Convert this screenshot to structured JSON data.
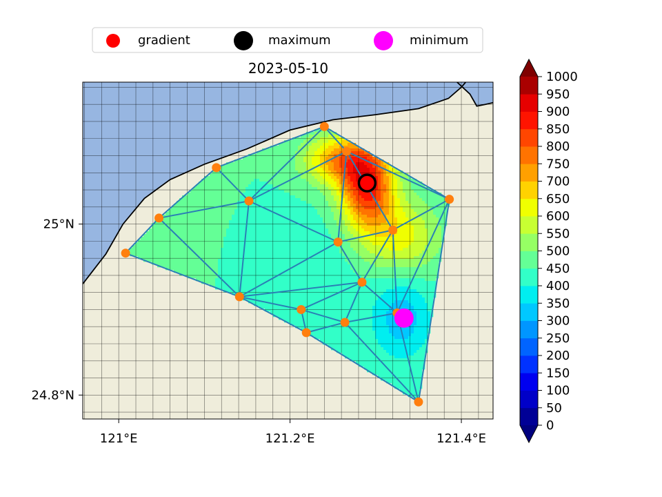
{
  "chart_data": {
    "type": "contour-map",
    "title": "2023-05-10",
    "legend": {
      "placement": "top",
      "entries": [
        {
          "label": "gradient",
          "color": "#ff0000",
          "marker": "circle"
        },
        {
          "label": "maximum",
          "color": "#000000",
          "marker": "circle"
        },
        {
          "label": "minimum",
          "color": "#ff00ff",
          "marker": "circle"
        }
      ]
    },
    "xlim": [
      120.958,
      121.437
    ],
    "ylim": [
      24.772,
      25.166
    ],
    "xticks": [
      {
        "value": 121.0,
        "label": "121°E"
      },
      {
        "value": 121.2,
        "label": "121.2°E"
      },
      {
        "value": 121.4,
        "label": "121.4°E"
      }
    ],
    "yticks": [
      {
        "value": 25.0,
        "label": "25°N"
      },
      {
        "value": 24.8,
        "label": "24.8°N"
      }
    ],
    "grid": true,
    "grid_spacing_deg": 0.02,
    "colors": {
      "sea": "#97b6e1",
      "land": "#efeddb",
      "mesh": "#2a7fb5",
      "station": "#ff7f0e"
    },
    "coastline": [
      [
        120.958,
        24.93
      ],
      [
        120.985,
        24.965
      ],
      [
        121.005,
        25.0
      ],
      [
        121.03,
        25.03
      ],
      [
        121.06,
        25.052
      ],
      [
        121.1,
        25.07
      ],
      [
        121.15,
        25.088
      ],
      [
        121.2,
        25.11
      ],
      [
        121.25,
        25.122
      ],
      [
        121.3,
        25.128
      ],
      [
        121.35,
        25.135
      ],
      [
        121.385,
        25.147
      ],
      [
        121.4,
        25.16
      ],
      [
        121.405,
        25.166
      ]
    ],
    "coastline2": [
      [
        121.395,
        25.166
      ],
      [
        121.41,
        25.152
      ],
      [
        121.418,
        25.138
      ],
      [
        121.428,
        25.14
      ],
      [
        121.437,
        25.142
      ]
    ],
    "stations": [
      {
        "lon": 121.24,
        "lat": 25.114
      },
      {
        "lon": 121.266,
        "lat": 25.085
      },
      {
        "lon": 121.114,
        "lat": 25.066
      },
      {
        "lon": 121.152,
        "lat": 25.027
      },
      {
        "lon": 121.047,
        "lat": 25.007
      },
      {
        "lon": 121.008,
        "lat": 24.966
      },
      {
        "lon": 121.386,
        "lat": 25.029
      },
      {
        "lon": 121.32,
        "lat": 24.993
      },
      {
        "lon": 121.256,
        "lat": 24.979
      },
      {
        "lon": 121.284,
        "lat": 24.932
      },
      {
        "lon": 121.141,
        "lat": 24.915
      },
      {
        "lon": 121.213,
        "lat": 24.9
      },
      {
        "lon": 121.264,
        "lat": 24.885
      },
      {
        "lon": 121.219,
        "lat": 24.873
      },
      {
        "lon": 121.325,
        "lat": 24.896
      },
      {
        "lon": 121.35,
        "lat": 24.792
      }
    ],
    "triangles": [
      [
        0,
        1,
        3
      ],
      [
        0,
        2,
        3
      ],
      [
        0,
        1,
        6
      ],
      [
        2,
        3,
        4
      ],
      [
        3,
        4,
        10
      ],
      [
        4,
        5,
        10
      ],
      [
        1,
        3,
        8
      ],
      [
        1,
        7,
        8
      ],
      [
        1,
        6,
        7
      ],
      [
        3,
        8,
        10
      ],
      [
        8,
        9,
        10
      ],
      [
        9,
        10,
        11
      ],
      [
        10,
        11,
        13
      ],
      [
        11,
        12,
        13
      ],
      [
        9,
        11,
        12
      ],
      [
        7,
        8,
        9
      ],
      [
        7,
        9,
        14
      ],
      [
        6,
        7,
        14
      ],
      [
        9,
        12,
        14
      ],
      [
        12,
        13,
        15
      ],
      [
        12,
        14,
        15
      ],
      [
        6,
        14,
        15
      ]
    ],
    "field_sources": [
      {
        "lon": 121.29,
        "lat": 25.045,
        "value": 870,
        "sx": 0.022,
        "sy": 0.036
      },
      {
        "lon": 121.255,
        "lat": 25.075,
        "value": 700,
        "sx": 0.028,
        "sy": 0.02
      },
      {
        "lon": 121.33,
        "lat": 24.985,
        "value": 620,
        "sx": 0.03,
        "sy": 0.03
      },
      {
        "lon": 121.33,
        "lat": 24.89,
        "value": 320,
        "sx": 0.024,
        "sy": 0.034
      },
      {
        "lon": 121.07,
        "lat": 24.97,
        "value": 470,
        "sx": 0.05,
        "sy": 0.05
      },
      {
        "lon": 121.2,
        "lat": 24.95,
        "value": 400,
        "sx": 0.05,
        "sy": 0.04
      }
    ],
    "field_base": 450,
    "maximum": {
      "lon": 121.29,
      "lat": 25.048
    },
    "minimum": {
      "lon": 121.333,
      "lat": 24.89
    },
    "colorbar": {
      "levels": [
        0,
        50,
        100,
        150,
        200,
        250,
        300,
        350,
        400,
        450,
        500,
        550,
        600,
        650,
        700,
        750,
        800,
        850,
        900,
        950,
        1000
      ],
      "ticks": [
        "0",
        "50",
        "100",
        "150",
        "200",
        "250",
        "300",
        "350",
        "400",
        "450",
        "500",
        "550",
        "600",
        "650",
        "700",
        "750",
        "800",
        "850",
        "900",
        "950",
        "1000"
      ],
      "colors": [
        "#000096",
        "#0000c8",
        "#0000f0",
        "#0032ff",
        "#0064ff",
        "#0096ff",
        "#00c8ff",
        "#00eef0",
        "#32ffc8",
        "#64ff96",
        "#96ff64",
        "#c8ff32",
        "#f0ff00",
        "#ffd200",
        "#ffa000",
        "#ff7300",
        "#ff4600",
        "#ff1400",
        "#e60000",
        "#aa0000"
      ],
      "under": "#00007f",
      "over": "#7f0000"
    }
  }
}
